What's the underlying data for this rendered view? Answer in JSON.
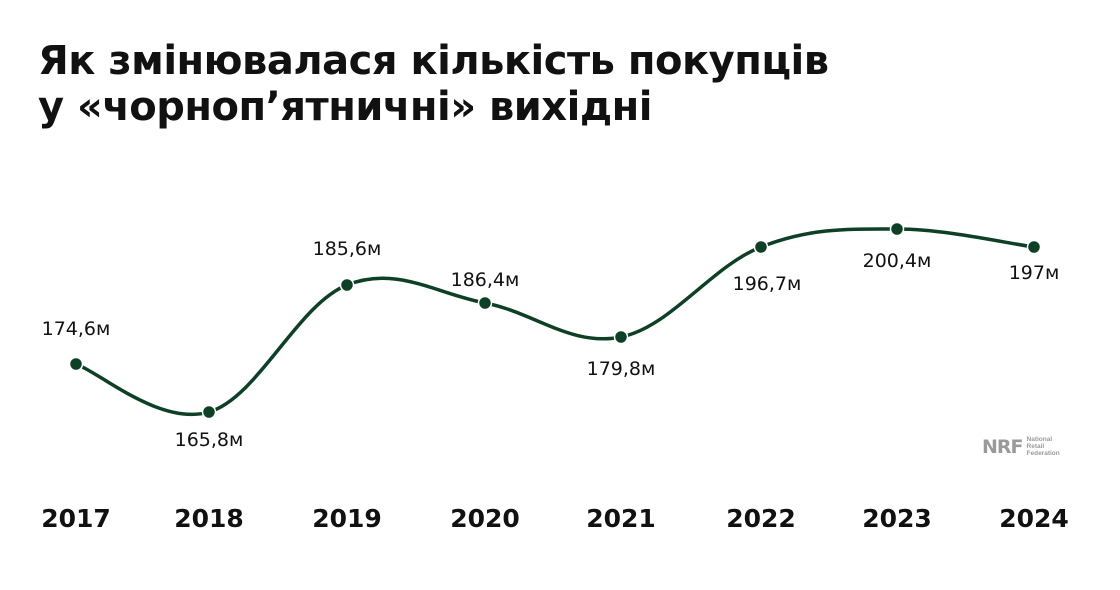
{
  "title": {
    "line1": "Як змінювалася кількість покупців",
    "line2": "у «чорноп’ятничні» вихідні"
  },
  "logo": {
    "mark": "NRF",
    "sub": [
      "National",
      "Retail",
      "Federation"
    ]
  },
  "colors": {
    "line": "#0d4025",
    "text": "#111111",
    "logo": "#9a9a9a"
  },
  "chart_data": {
    "type": "line",
    "title": "Як змінювалася кількість покупців у «чорноп’ятничні» вихідні",
    "x": [
      "2017",
      "2018",
      "2019",
      "2020",
      "2021",
      "2022",
      "2023",
      "2024"
    ],
    "values": [
      174.6,
      165.8,
      185.6,
      186.4,
      179.8,
      196.7,
      200.4,
      197
    ],
    "labels": [
      "174,6м",
      "165,8м",
      "185,6м",
      "186,4м",
      "179,8м",
      "196,7м",
      "200,4м",
      "197м"
    ],
    "label_side": [
      "above",
      "below",
      "above",
      "above",
      "below",
      "below",
      "below",
      "below"
    ],
    "unit": "млн",
    "xlabel": "",
    "ylabel": "",
    "grid": false,
    "legend": false,
    "smooth": true
  }
}
